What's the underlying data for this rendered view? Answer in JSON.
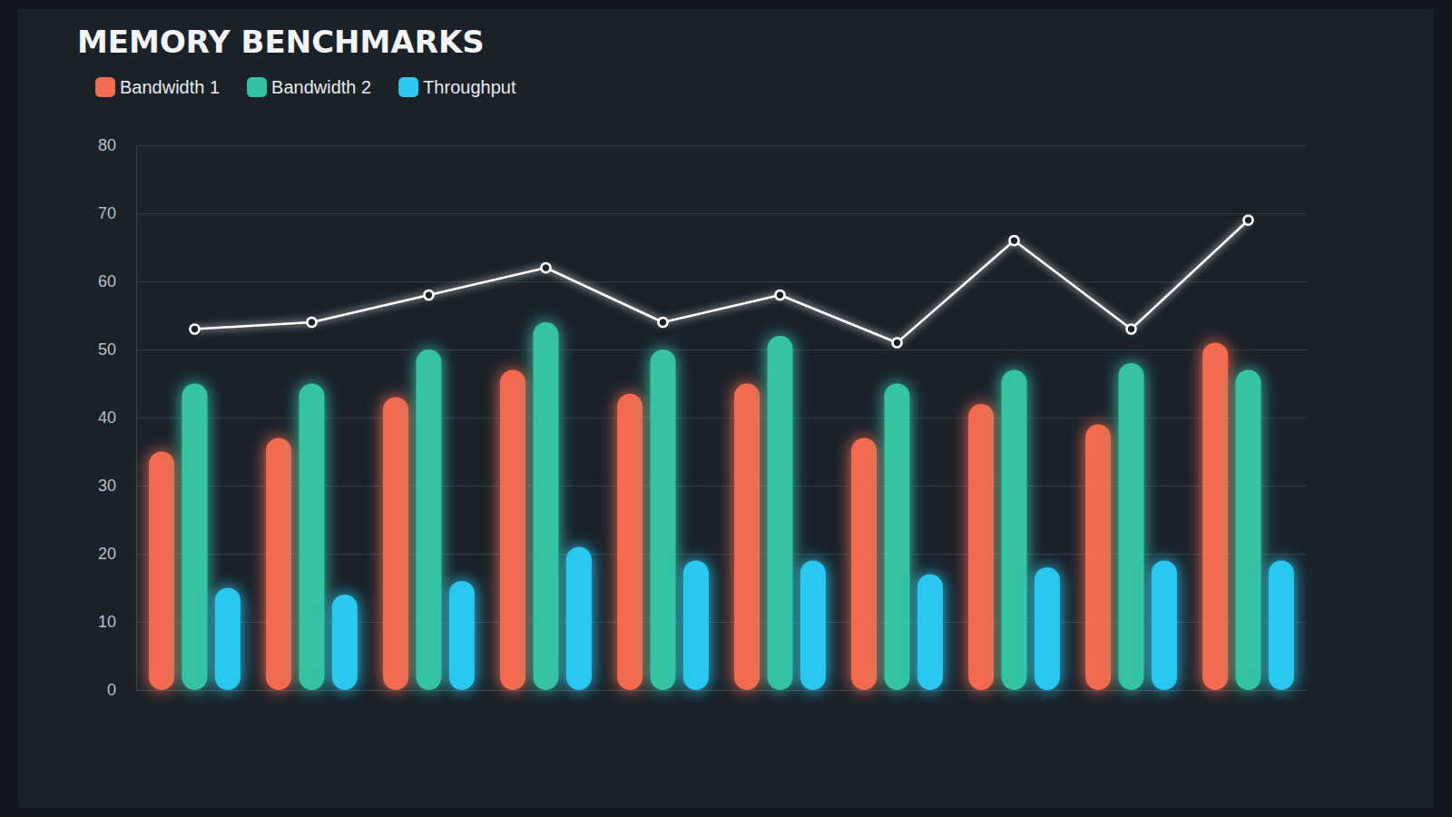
{
  "chart_data": {
    "type": "bar",
    "title": "MEMORY BENCHMARKS",
    "categories": [
      null,
      null,
      null,
      null,
      null,
      null,
      null,
      null,
      null,
      null
    ],
    "series": [
      {
        "name": "Bandwidth 1",
        "color": "#f36b50",
        "values": [
          35,
          37,
          43,
          47,
          43.5,
          45,
          37,
          42,
          39,
          51
        ]
      },
      {
        "name": "Bandwidth 2",
        "color": "#34c3a2",
        "values": [
          45,
          45,
          50,
          54,
          50,
          52,
          45,
          47,
          48,
          47
        ]
      },
      {
        "name": "Throughput",
        "color": "#2cc8f0",
        "values": [
          15,
          14,
          16,
          21,
          19,
          19,
          17,
          18,
          19,
          19
        ]
      },
      {
        "type": "line",
        "color": "#ffffff",
        "marker": "circle",
        "values": [
          53,
          54,
          58,
          62,
          54,
          58,
          51,
          66,
          53,
          69
        ]
      }
    ],
    "ylim": [
      0,
      80
    ],
    "yticks": [
      0,
      10,
      20,
      30,
      40,
      50,
      60,
      70,
      80
    ],
    "grid": true,
    "legend": "top-left"
  }
}
